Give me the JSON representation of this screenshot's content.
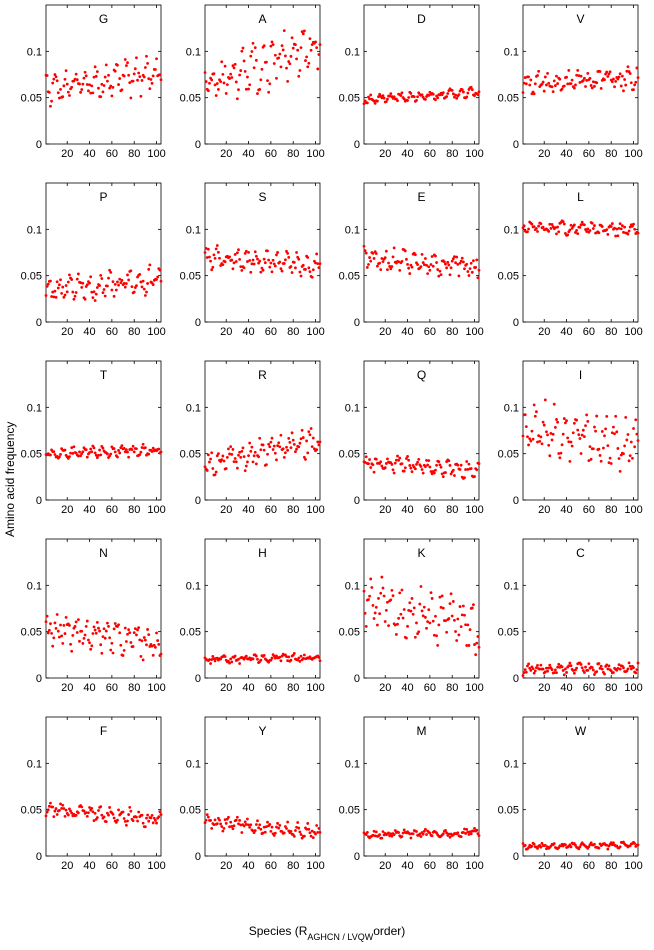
{
  "figure": {
    "ylabel": "Amino acid frequency",
    "xlabel_prefix": "Species (R",
    "xlabel_subscript": "AGHCN / LVQW",
    "xlabel_suffix": "order)",
    "marker_color": "#ff0000"
  },
  "chart_data": [
    {
      "type": "scatter",
      "title": "G",
      "xlim": [
        1,
        104
      ],
      "ylim": [
        0,
        0.15
      ],
      "xticks": [
        20,
        40,
        60,
        80,
        100
      ],
      "yticks": [
        0,
        0.05,
        0.1
      ],
      "center": 0.068,
      "slope": 0.014,
      "spread": 0.012,
      "noise": 0.01,
      "seed": 1
    },
    {
      "type": "scatter",
      "title": "A",
      "xlim": [
        1,
        104
      ],
      "ylim": [
        0,
        0.15
      ],
      "xticks": [
        20,
        40,
        60,
        80,
        100
      ],
      "yticks": [
        0,
        0.05,
        0.1
      ],
      "center": 0.085,
      "slope": 0.05,
      "spread": 0.016,
      "noise": 0.018,
      "seed": 2
    },
    {
      "type": "scatter",
      "title": "D",
      "xlim": [
        1,
        104
      ],
      "ylim": [
        0,
        0.15
      ],
      "xticks": [
        20,
        40,
        60,
        80,
        100
      ],
      "yticks": [
        0,
        0.05,
        0.1
      ],
      "center": 0.052,
      "slope": 0.008,
      "spread": 0.003,
      "noise": 0.003,
      "seed": 3
    },
    {
      "type": "scatter",
      "title": "V",
      "xlim": [
        1,
        104
      ],
      "ylim": [
        0,
        0.15
      ],
      "xticks": [
        20,
        40,
        60,
        80,
        100
      ],
      "yticks": [
        0,
        0.05,
        0.1
      ],
      "center": 0.068,
      "slope": 0.006,
      "spread": 0.005,
      "noise": 0.008,
      "seed": 4
    },
    {
      "type": "scatter",
      "title": "P",
      "xlim": [
        1,
        104
      ],
      "ylim": [
        0,
        0.15
      ],
      "xticks": [
        20,
        40,
        60,
        80,
        100
      ],
      "yticks": [
        0,
        0.05,
        0.1
      ],
      "center": 0.04,
      "slope": 0.012,
      "spread": 0.008,
      "noise": 0.009,
      "seed": 5
    },
    {
      "type": "scatter",
      "title": "S",
      "xlim": [
        1,
        104
      ],
      "ylim": [
        0,
        0.15
      ],
      "xticks": [
        20,
        40,
        60,
        80,
        100
      ],
      "yticks": [
        0,
        0.05,
        0.1
      ],
      "center": 0.065,
      "slope": -0.01,
      "spread": 0.006,
      "noise": 0.008,
      "seed": 6
    },
    {
      "type": "scatter",
      "title": "E",
      "xlim": [
        1,
        104
      ],
      "ylim": [
        0,
        0.15
      ],
      "xticks": [
        20,
        40,
        60,
        80,
        100
      ],
      "yticks": [
        0,
        0.05,
        0.1
      ],
      "center": 0.064,
      "slope": -0.01,
      "spread": 0.006,
      "noise": 0.009,
      "seed": 7
    },
    {
      "type": "scatter",
      "title": "L",
      "xlim": [
        1,
        104
      ],
      "ylim": [
        0,
        0.15
      ],
      "xticks": [
        20,
        40,
        60,
        80,
        100
      ],
      "yticks": [
        0,
        0.05,
        0.1
      ],
      "center": 0.101,
      "slope": -0.004,
      "spread": 0.004,
      "noise": 0.005,
      "seed": 8
    },
    {
      "type": "scatter",
      "title": "T",
      "xlim": [
        1,
        104
      ],
      "ylim": [
        0,
        0.15
      ],
      "xticks": [
        20,
        40,
        60,
        80,
        100
      ],
      "yticks": [
        0,
        0.05,
        0.1
      ],
      "center": 0.052,
      "slope": 0.004,
      "spread": 0.003,
      "noise": 0.004,
      "seed": 9
    },
    {
      "type": "scatter",
      "title": "R",
      "xlim": [
        1,
        104
      ],
      "ylim": [
        0,
        0.15
      ],
      "xticks": [
        20,
        40,
        60,
        80,
        100
      ],
      "yticks": [
        0,
        0.05,
        0.1
      ],
      "center": 0.052,
      "slope": 0.025,
      "spread": 0.008,
      "noise": 0.01,
      "seed": 10
    },
    {
      "type": "scatter",
      "title": "Q",
      "xlim": [
        1,
        104
      ],
      "ylim": [
        0,
        0.15
      ],
      "xticks": [
        20,
        40,
        60,
        80,
        100
      ],
      "yticks": [
        0,
        0.05,
        0.1
      ],
      "center": 0.036,
      "slope": -0.008,
      "spread": 0.005,
      "noise": 0.006,
      "seed": 11
    },
    {
      "type": "scatter",
      "title": "I",
      "xlim": [
        1,
        104
      ],
      "ylim": [
        0,
        0.15
      ],
      "xticks": [
        20,
        40,
        60,
        80,
        100
      ],
      "yticks": [
        0,
        0.05,
        0.1
      ],
      "center": 0.07,
      "slope": -0.02,
      "spread": 0.015,
      "noise": 0.018,
      "seed": 12
    },
    {
      "type": "scatter",
      "title": "N",
      "xlim": [
        1,
        104
      ],
      "ylim": [
        0,
        0.15
      ],
      "xticks": [
        20,
        40,
        60,
        80,
        100
      ],
      "yticks": [
        0,
        0.05,
        0.1
      ],
      "center": 0.045,
      "slope": -0.02,
      "spread": 0.01,
      "noise": 0.012,
      "seed": 13
    },
    {
      "type": "scatter",
      "title": "H",
      "xlim": [
        1,
        104
      ],
      "ylim": [
        0,
        0.15
      ],
      "xticks": [
        20,
        40,
        60,
        80,
        100
      ],
      "yticks": [
        0,
        0.05,
        0.1
      ],
      "center": 0.021,
      "slope": 0.003,
      "spread": 0.002,
      "noise": 0.003,
      "seed": 14
    },
    {
      "type": "scatter",
      "title": "K",
      "xlim": [
        1,
        104
      ],
      "ylim": [
        0,
        0.15
      ],
      "xticks": [
        20,
        40,
        60,
        80,
        100
      ],
      "yticks": [
        0,
        0.05,
        0.1
      ],
      "center": 0.068,
      "slope": -0.03,
      "spread": 0.015,
      "noise": 0.018,
      "seed": 15
    },
    {
      "type": "scatter",
      "title": "C",
      "xlim": [
        1,
        104
      ],
      "ylim": [
        0,
        0.15
      ],
      "xticks": [
        20,
        40,
        60,
        80,
        100
      ],
      "yticks": [
        0,
        0.05,
        0.1
      ],
      "center": 0.01,
      "slope": 0.002,
      "spread": 0.003,
      "noise": 0.004,
      "seed": 16
    },
    {
      "type": "scatter",
      "title": "F",
      "xlim": [
        1,
        104
      ],
      "ylim": [
        0,
        0.15
      ],
      "xticks": [
        20,
        40,
        60,
        80,
        100
      ],
      "yticks": [
        0,
        0.05,
        0.1
      ],
      "center": 0.045,
      "slope": -0.012,
      "spread": 0.005,
      "noise": 0.006,
      "seed": 17
    },
    {
      "type": "scatter",
      "title": "Y",
      "xlim": [
        1,
        104
      ],
      "ylim": [
        0,
        0.15
      ],
      "xticks": [
        20,
        40,
        60,
        80,
        100
      ],
      "yticks": [
        0,
        0.05,
        0.1
      ],
      "center": 0.031,
      "slope": -0.012,
      "spread": 0.004,
      "noise": 0.005,
      "seed": 18
    },
    {
      "type": "scatter",
      "title": "M",
      "xlim": [
        1,
        104
      ],
      "ylim": [
        0,
        0.15
      ],
      "xticks": [
        20,
        40,
        60,
        80,
        100
      ],
      "yticks": [
        0,
        0.05,
        0.1
      ],
      "center": 0.024,
      "slope": 0.003,
      "spread": 0.002,
      "noise": 0.003,
      "seed": 19
    },
    {
      "type": "scatter",
      "title": "W",
      "xlim": [
        1,
        104
      ],
      "ylim": [
        0,
        0.15
      ],
      "xticks": [
        20,
        40,
        60,
        80,
        100
      ],
      "yticks": [
        0,
        0.05,
        0.1
      ],
      "center": 0.011,
      "slope": 0.002,
      "spread": 0.002,
      "noise": 0.002,
      "seed": 20
    }
  ]
}
